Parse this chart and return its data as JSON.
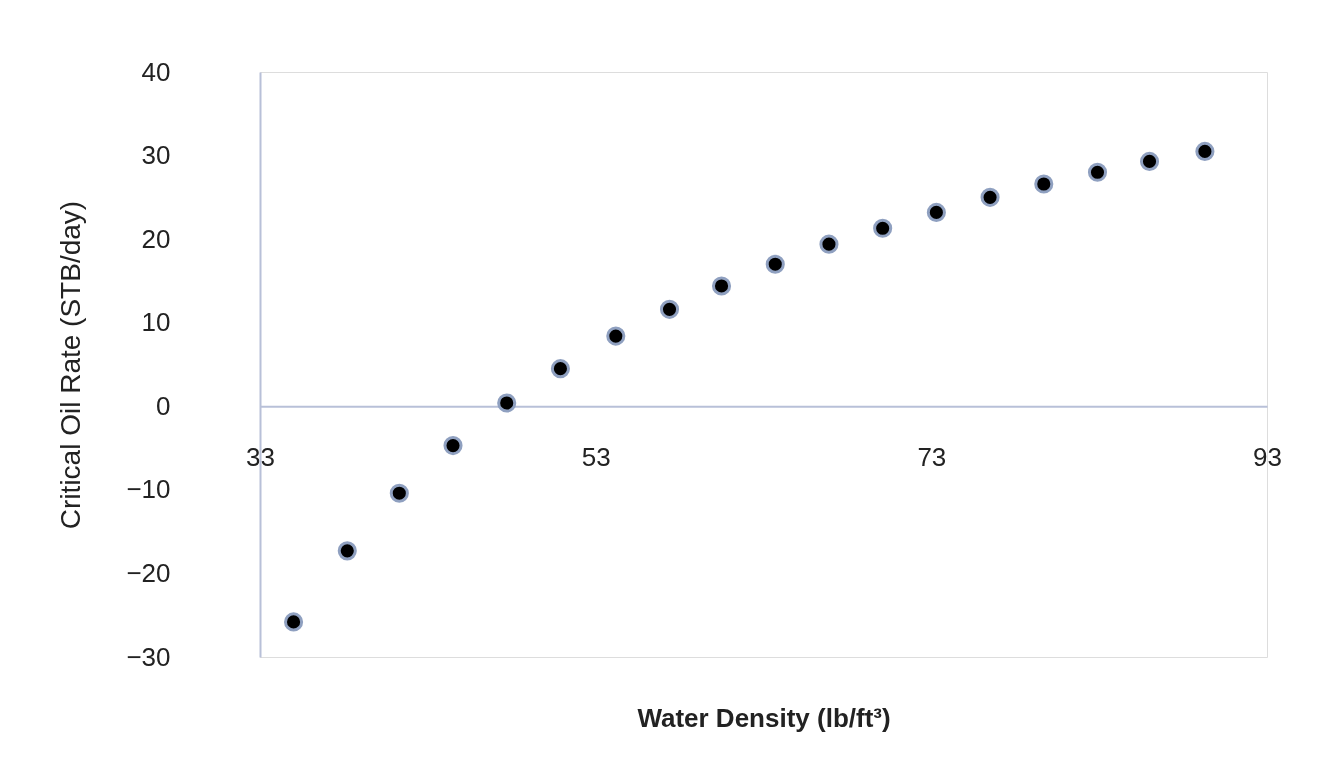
{
  "chart_data": {
    "type": "scatter",
    "xlabel": "Water Density (lb/ft³)",
    "ylabel": "Critical Oil Rate (STB/day)",
    "x": [
      35,
      38.2,
      41.3,
      44.5,
      47.7,
      50.9,
      54.2,
      57.4,
      60.5,
      63.7,
      66.9,
      70.1,
      73.3,
      76.5,
      79.7,
      82.9,
      86.0,
      89.3
    ],
    "series": [
      {
        "color": "#000000",
        "values": [
          -25.8,
          -17.3,
          -10.4,
          -4.7,
          0.4,
          4.5,
          8.4,
          11.6,
          14.4,
          17.0,
          19.4,
          21.3,
          23.2,
          25.0,
          26.6,
          28.0,
          29.3,
          30.5
        ]
      }
    ],
    "xlim": [
      33,
      93
    ],
    "xticks": [
      33,
      53,
      73,
      93
    ],
    "ylim": [
      -30,
      40
    ],
    "yticks": [
      -30,
      -20,
      -10,
      0,
      10,
      20,
      30,
      40
    ],
    "grid": false,
    "legend": false,
    "marker": "circle"
  }
}
